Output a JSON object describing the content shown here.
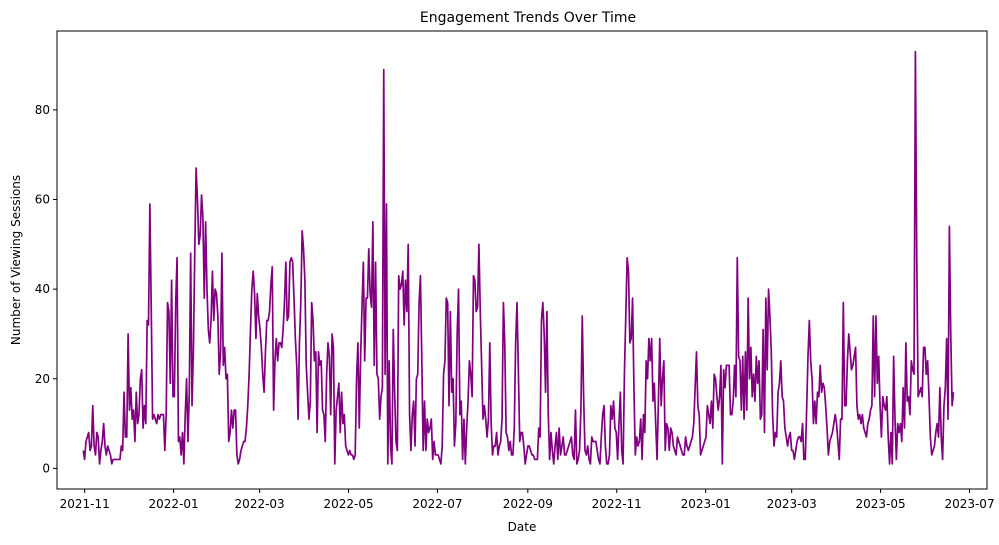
{
  "chart_data": {
    "type": "line",
    "title": "Engagement Trends Over Time",
    "xlabel": "Date",
    "ylabel": "Number of Viewing Sessions",
    "xlim": [
      "2021-10-13",
      "2023-07-13"
    ],
    "ylim": [
      -4.6,
      97.6
    ],
    "grid": false,
    "line_color": "#800080",
    "x_ticks": [
      "2021-11",
      "2022-01",
      "2022-03",
      "2022-05",
      "2022-07",
      "2022-09",
      "2022-11",
      "2023-01",
      "2023-03",
      "2023-05",
      "2023-07"
    ],
    "y_ticks": [
      0,
      20,
      40,
      60,
      80
    ],
    "series": [
      {
        "start_date": "2021-10-31",
        "end_date": "2023-06-20",
        "values": [
          4,
          2,
          6,
          7,
          8,
          4,
          5,
          14,
          5,
          3,
          8,
          7,
          1,
          4,
          6,
          10,
          5,
          3,
          5,
          4,
          3,
          1,
          2,
          2,
          2,
          2,
          2,
          2,
          5,
          4,
          17,
          7,
          7,
          30,
          13,
          18,
          11,
          13,
          6,
          17,
          10,
          12,
          20,
          22,
          9,
          14,
          10,
          33,
          32,
          59,
          36,
          11,
          12,
          11,
          10,
          12,
          11,
          12,
          12,
          12,
          4,
          12,
          37,
          35,
          19,
          42,
          16,
          16,
          37,
          47,
          6,
          7,
          3,
          8,
          1,
          12,
          20,
          6,
          17,
          48,
          14,
          26,
          48,
          67,
          60,
          50,
          52,
          61,
          56,
          38,
          55,
          40,
          31,
          28,
          33,
          44,
          33,
          40,
          39,
          34,
          21,
          26,
          48,
          23,
          27,
          20,
          21,
          6,
          8,
          13,
          9,
          13,
          13,
          3,
          1,
          2,
          4,
          5,
          6,
          6,
          9,
          14,
          21,
          31,
          40,
          44,
          39,
          29,
          39,
          34,
          31,
          27,
          21,
          17,
          26,
          33,
          33,
          35,
          41,
          45,
          13,
          24,
          29,
          24,
          28,
          28,
          27,
          31,
          37,
          46,
          33,
          34,
          46,
          47,
          46,
          38,
          29,
          23,
          11,
          28,
          37,
          53,
          49,
          42,
          23,
          17,
          11,
          15,
          37,
          33,
          24,
          26,
          8,
          26,
          23,
          24,
          13,
          12,
          6,
          21,
          28,
          25,
          12,
          30,
          27,
          1,
          13,
          16,
          19,
          8,
          17,
          10,
          12,
          5,
          4,
          3,
          4,
          3,
          3,
          2,
          3,
          20,
          28,
          9,
          25,
          36,
          46,
          24,
          38,
          38,
          49,
          39,
          36,
          55,
          23,
          46,
          21,
          20,
          11,
          16,
          18,
          89,
          21,
          59,
          1,
          24,
          5,
          1,
          31,
          17,
          6,
          4,
          43,
          40,
          41,
          44,
          32,
          42,
          35,
          50,
          12,
          4,
          12,
          15,
          5,
          20,
          21,
          37,
          43,
          24,
          4,
          15,
          4,
          11,
          8,
          9,
          11,
          2,
          6,
          3,
          3,
          3,
          2,
          1,
          5,
          21,
          24,
          38,
          37,
          14,
          35,
          17,
          20,
          5,
          10,
          30,
          40,
          12,
          15,
          2,
          11,
          1,
          9,
          15,
          24,
          21,
          16,
          43,
          42,
          35,
          36,
          50,
          35,
          23,
          11,
          14,
          11,
          7,
          11,
          28,
          10,
          3,
          5,
          5,
          8,
          3,
          5,
          6,
          11,
          37,
          28,
          8,
          7,
          4,
          6,
          3,
          3,
          9,
          28,
          37,
          22,
          6,
          8,
          8,
          5,
          1,
          3,
          5,
          5,
          4,
          3,
          3,
          2,
          2,
          2,
          9,
          7,
          33,
          37,
          30,
          17,
          35,
          12,
          2,
          8,
          4,
          1,
          5,
          8,
          2,
          9,
          3,
          5,
          7,
          3,
          3,
          4,
          5,
          6,
          7,
          3,
          2,
          13,
          1,
          2,
          4,
          13,
          34,
          16,
          4,
          3,
          5,
          2,
          1,
          7,
          6,
          6,
          6,
          4,
          2,
          1,
          7,
          12,
          14,
          5,
          1,
          1,
          3,
          14,
          11,
          15,
          9,
          8,
          2,
          10,
          17,
          4,
          1,
          21,
          34,
          47,
          44,
          28,
          29,
          38,
          18,
          3,
          7,
          5,
          6,
          11,
          2,
          12,
          8,
          24,
          20,
          29,
          24,
          29,
          15,
          19,
          10,
          2,
          15,
          29,
          14,
          20,
          24,
          4,
          10,
          9,
          4,
          9,
          8,
          5,
          4,
          3,
          7,
          6,
          5,
          4,
          3,
          3,
          7,
          5,
          4,
          5,
          6,
          7,
          10,
          18,
          26,
          14,
          12,
          3,
          4,
          5,
          6,
          7,
          14,
          12,
          10,
          15,
          9,
          21,
          20,
          16,
          13,
          16,
          23,
          1,
          22,
          18,
          23,
          23,
          23,
          12,
          12,
          15,
          23,
          16,
          47,
          25,
          24,
          13,
          25,
          11,
          26,
          13,
          38,
          20,
          27,
          16,
          21,
          15,
          25,
          19,
          24,
          11,
          12,
          31,
          8,
          38,
          22,
          40,
          34,
          26,
          12,
          5,
          8,
          7,
          17,
          19,
          24,
          16,
          15,
          9,
          7,
          5,
          7,
          8,
          4,
          4,
          2,
          4,
          6,
          7,
          7,
          6,
          10,
          2,
          2,
          13,
          25,
          33,
          24,
          20,
          10,
          15,
          10,
          17,
          16,
          23,
          17,
          19,
          18,
          14,
          9,
          3,
          6,
          7,
          8,
          10,
          12,
          10,
          6,
          2,
          11,
          11,
          37,
          14,
          14,
          24,
          30,
          26,
          22,
          23,
          25,
          27,
          14,
          11,
          12,
          10,
          12,
          9,
          8,
          7,
          10,
          11,
          13,
          14,
          34,
          16,
          34,
          19,
          25,
          14,
          7,
          16,
          14,
          13,
          16,
          7,
          1,
          8,
          1,
          25,
          11,
          2,
          10,
          8,
          10,
          6,
          18,
          9,
          28,
          15,
          16,
          12,
          24,
          22,
          21,
          93,
          47,
          16,
          17,
          18,
          16,
          27,
          27,
          21,
          24,
          16,
          7,
          3,
          4,
          5,
          8,
          10,
          7,
          18,
          7,
          2,
          14,
          18,
          29,
          11,
          54,
          30,
          14,
          17
        ]
      }
    ]
  }
}
